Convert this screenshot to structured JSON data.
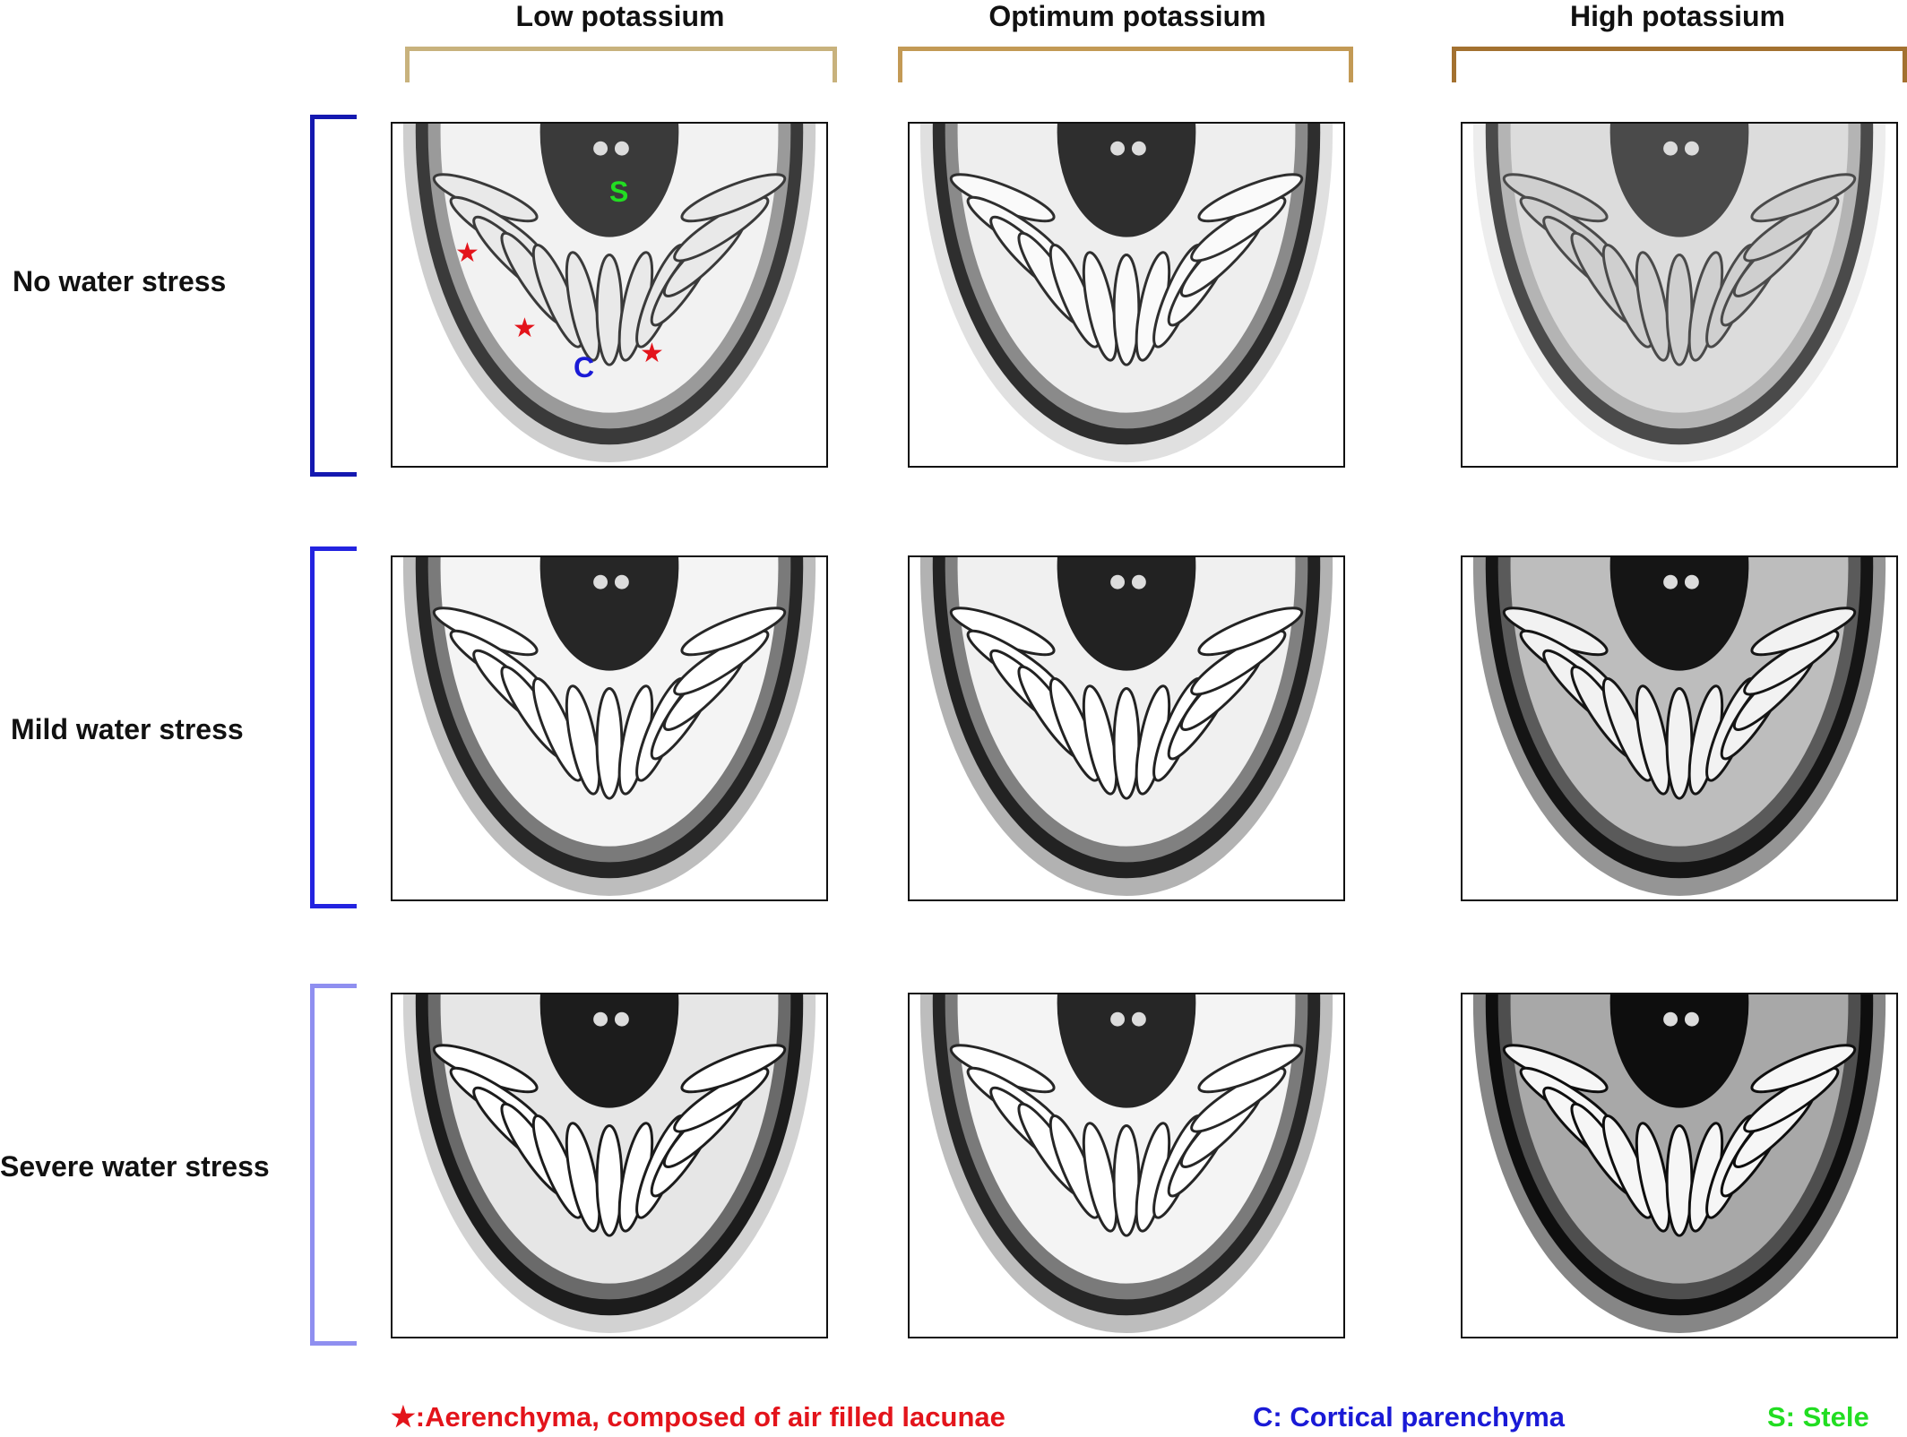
{
  "columns": [
    {
      "label": "Low potassium",
      "color": "#c8b27d"
    },
    {
      "label": "Optimum potassium",
      "color": "#c39a55"
    },
    {
      "label": "High potassium",
      "color": "#a37130"
    }
  ],
  "rows": [
    {
      "label": "No water stress",
      "color": "#1418b0"
    },
    {
      "label": "Mild water stress",
      "color": "#2323e0"
    },
    {
      "label": "Severe water stress",
      "color": "#8f8ff0"
    }
  ],
  "markers": {
    "stele": "S",
    "cortex": "C",
    "aerenchyma_symbol": "★"
  },
  "legend": {
    "aerenchyma": "★:Aerenchyma, composed of air filled lacunae",
    "cortical": "C: Cortical parenchyma",
    "stele": "S: Stele",
    "colors": {
      "aerenchyma": "#e3141b",
      "cortical": "#1a1ad6",
      "stele": "#22dd22"
    }
  },
  "panels": [
    {
      "name": "low-k-no-stress"
    },
    {
      "name": "optimum-k-no-stress"
    },
    {
      "name": "high-k-no-stress"
    },
    {
      "name": "low-k-mild-stress"
    },
    {
      "name": "optimum-k-mild-stress"
    },
    {
      "name": "high-k-mild-stress"
    },
    {
      "name": "low-k-severe-stress"
    },
    {
      "name": "optimum-k-severe-stress"
    },
    {
      "name": "high-k-severe-stress"
    }
  ]
}
